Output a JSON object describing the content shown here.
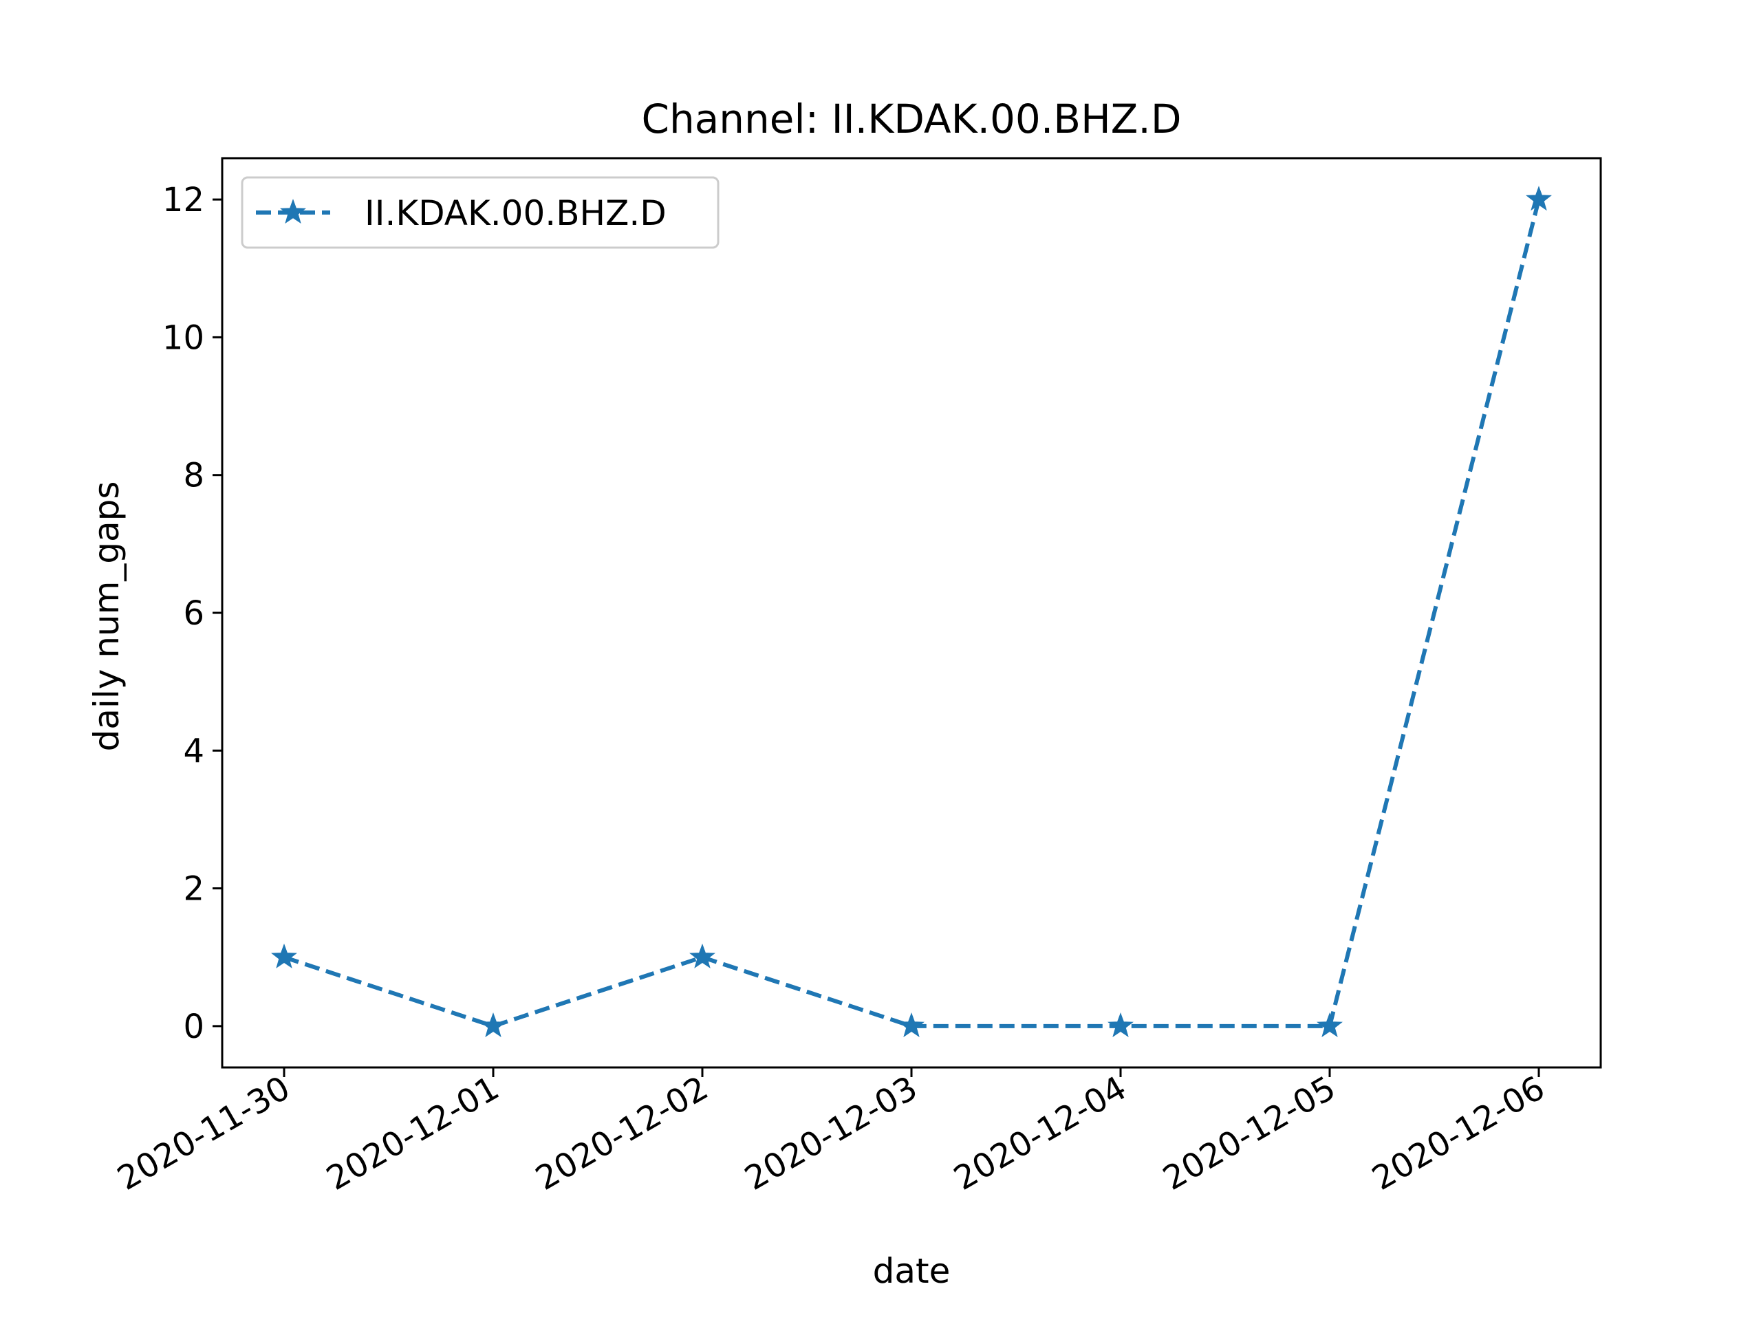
{
  "chart_data": {
    "type": "line",
    "title": "Channel: II.KDAK.00.BHZ.D",
    "xlabel": "date",
    "ylabel": "daily num_gaps",
    "categories": [
      "2020-11-30",
      "2020-12-01",
      "2020-12-02",
      "2020-12-03",
      "2020-12-04",
      "2020-12-05",
      "2020-12-06"
    ],
    "series": [
      {
        "name": "II.KDAK.00.BHZ.D",
        "values": [
          1,
          0,
          1,
          0,
          0,
          0,
          12
        ],
        "color": "#1f77b4",
        "line_style": "dashed",
        "marker": "star"
      }
    ],
    "yticks": [
      0,
      2,
      4,
      6,
      8,
      10,
      12
    ],
    "ylim": [
      -0.6,
      12.6
    ],
    "grid": false,
    "legend_position": "top-left"
  }
}
